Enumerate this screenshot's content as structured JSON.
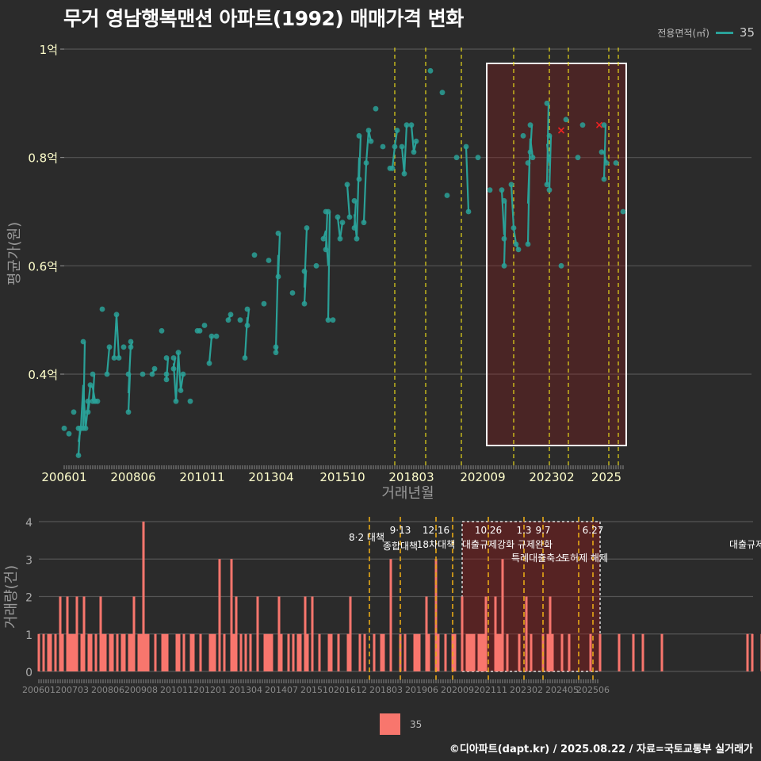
{
  "title": "무거 영남행복맨션 아파트(1992) 매매가격 변화",
  "legend": {
    "title": "전용면적(㎡)",
    "series_name": "35",
    "line_color": "#2aa198",
    "bar_color": "#f8766d"
  },
  "caption": "©디아파트(dapt.kr) / 2025.08.22 / 자료=국토교통부 실거래가",
  "chart_data": [
    {
      "type": "scatter",
      "xlabel": "거래년월",
      "ylabel": "평균가(원)",
      "x_tick_labels": [
        "200601",
        "200806",
        "201011",
        "201304",
        "201510",
        "201803",
        "202009",
        "202302",
        "2025"
      ],
      "y_tick_labels": [
        "0.4억",
        "0.6억",
        "0.8억",
        "1억"
      ],
      "ylim": [
        0.22,
        1.0
      ],
      "y_unit": "억",
      "grid": true,
      "legend_position": "top-right",
      "series": [
        {
          "name": "35",
          "color": "#2aa198",
          "points": [
            [
              "2006-01",
              0.3
            ],
            [
              "2006-03",
              0.29
            ],
            [
              "2006-05",
              0.33
            ],
            [
              "2006-07",
              0.3
            ],
            [
              "2006-07",
              0.25
            ],
            [
              "2006-08",
              0.3
            ],
            [
              "2006-09",
              0.3
            ],
            [
              "2006-09",
              0.46
            ],
            [
              "2006-10",
              0.3
            ],
            [
              "2006-11",
              0.33
            ],
            [
              "2006-11",
              0.35
            ],
            [
              "2006-12",
              0.38
            ],
            [
              "2007-01",
              0.35
            ],
            [
              "2007-01",
              0.4
            ],
            [
              "2007-02",
              0.35
            ],
            [
              "2007-03",
              0.35
            ],
            [
              "2007-05",
              0.52
            ],
            [
              "2007-07",
              0.4
            ],
            [
              "2007-08",
              0.45
            ],
            [
              "2007-10",
              0.43
            ],
            [
              "2007-11",
              0.51
            ],
            [
              "2007-12",
              0.43
            ],
            [
              "2008-02",
              0.45
            ],
            [
              "2008-04",
              0.33
            ],
            [
              "2008-04",
              0.4
            ],
            [
              "2008-05",
              0.45
            ],
            [
              "2008-05",
              0.46
            ],
            [
              "2008-10",
              0.4
            ],
            [
              "2009-02",
              0.4
            ],
            [
              "2009-03",
              0.41
            ],
            [
              "2009-06",
              0.48
            ],
            [
              "2009-08",
              0.43
            ],
            [
              "2009-08",
              0.4
            ],
            [
              "2009-08",
              0.39
            ],
            [
              "2009-11",
              0.41
            ],
            [
              "2009-11",
              0.43
            ],
            [
              "2009-12",
              0.35
            ],
            [
              "2010-01",
              0.44
            ],
            [
              "2010-02",
              0.37
            ],
            [
              "2010-03",
              0.4
            ],
            [
              "2010-06",
              0.35
            ],
            [
              "2010-09",
              0.48
            ],
            [
              "2010-10",
              0.48
            ],
            [
              "2010-12",
              0.49
            ],
            [
              "2011-02",
              0.42
            ],
            [
              "2011-03",
              0.47
            ],
            [
              "2011-05",
              0.47
            ],
            [
              "2011-10",
              0.5
            ],
            [
              "2011-11",
              0.51
            ],
            [
              "2012-03",
              0.5
            ],
            [
              "2012-05",
              0.43
            ],
            [
              "2012-06",
              0.49
            ],
            [
              "2012-06",
              0.52
            ],
            [
              "2012-09",
              0.62
            ],
            [
              "2013-01",
              0.53
            ],
            [
              "2013-03",
              0.61
            ],
            [
              "2013-06",
              0.44
            ],
            [
              "2013-06",
              0.45
            ],
            [
              "2013-07",
              0.58
            ],
            [
              "2013-07",
              0.66
            ],
            [
              "2014-01",
              0.55
            ],
            [
              "2014-06",
              0.53
            ],
            [
              "2014-06",
              0.59
            ],
            [
              "2014-07",
              0.67
            ],
            [
              "2014-11",
              0.6
            ],
            [
              "2015-02",
              0.65
            ],
            [
              "2015-03",
              0.63
            ],
            [
              "2015-03",
              0.7
            ],
            [
              "2015-04",
              0.5
            ],
            [
              "2015-04",
              0.7
            ],
            [
              "2015-06",
              0.5
            ],
            [
              "2015-08",
              0.69
            ],
            [
              "2015-09",
              0.65
            ],
            [
              "2015-10",
              0.68
            ],
            [
              "2015-12",
              0.75
            ],
            [
              "2016-01",
              0.69
            ],
            [
              "2016-03",
              0.67
            ],
            [
              "2016-03",
              0.72
            ],
            [
              "2016-04",
              0.65
            ],
            [
              "2016-05",
              0.76
            ],
            [
              "2016-05",
              0.84
            ],
            [
              "2016-07",
              0.68
            ],
            [
              "2016-08",
              0.79
            ],
            [
              "2016-09",
              0.85
            ],
            [
              "2016-10",
              0.83
            ],
            [
              "2016-12",
              0.89
            ],
            [
              "2017-03",
              0.82
            ],
            [
              "2017-06",
              0.78
            ],
            [
              "2017-07",
              0.78
            ],
            [
              "2017-08",
              0.82
            ],
            [
              "2017-09",
              0.85
            ],
            [
              "2017-11",
              0.82
            ],
            [
              "2017-12",
              0.77
            ],
            [
              "2018-01",
              0.86
            ],
            [
              "2018-03",
              0.86
            ],
            [
              "2018-04",
              0.81
            ],
            [
              "2018-05",
              0.83
            ],
            [
              "2018-11",
              0.96
            ],
            [
              "2019-04",
              0.92
            ],
            [
              "2019-06",
              0.73
            ],
            [
              "2019-10",
              0.8
            ],
            [
              "2020-02",
              0.82
            ],
            [
              "2020-03",
              0.7
            ],
            [
              "2020-07",
              0.8
            ],
            [
              "2020-12",
              0.74
            ],
            [
              "2021-05",
              0.74
            ],
            [
              "2021-06",
              0.72
            ],
            [
              "2021-06",
              0.65
            ],
            [
              "2021-06",
              0.6
            ],
            [
              "2021-09",
              0.75
            ],
            [
              "2021-10",
              0.67
            ],
            [
              "2021-11",
              0.64
            ],
            [
              "2021-12",
              0.63
            ],
            [
              "2022-02",
              0.84
            ],
            [
              "2022-04",
              0.64
            ],
            [
              "2022-04",
              0.79
            ],
            [
              "2022-05",
              0.81
            ],
            [
              "2022-05",
              0.86
            ],
            [
              "2022-06",
              0.8
            ],
            [
              "2022-12",
              0.9
            ],
            [
              "2022-12",
              0.75
            ],
            [
              "2023-01",
              0.74
            ],
            [
              "2023-01",
              0.84
            ],
            [
              "2023-06",
              0.6
            ],
            [
              "2023-08",
              0.87
            ],
            [
              "2024-01",
              0.8
            ],
            [
              "2024-03",
              0.86
            ],
            [
              "2024-11",
              0.81
            ],
            [
              "2024-12",
              0.86
            ],
            [
              "2024-12",
              0.76
            ],
            [
              "2025-01",
              0.79
            ],
            [
              "2025-05",
              0.79
            ],
            [
              "2025-08",
              0.7
            ]
          ]
        }
      ],
      "cancelled_marks": [
        [
          "2023-06",
          0.85
        ],
        [
          "2024-10",
          0.86
        ]
      ],
      "policy_dates": [
        "2017-08",
        "2018-09",
        "2019-12",
        "2021-10",
        "2023-01",
        "2023-09",
        "2025-02",
        "2025-06"
      ],
      "highlight_range": [
        "2020-12",
        "2025-08"
      ]
    },
    {
      "type": "bar",
      "ylabel": "거래량(건)",
      "x_tick_labels": [
        "200601",
        "200703",
        "200806",
        "200908",
        "201011",
        "201201",
        "201304",
        "201407",
        "201510",
        "201612",
        "201803",
        "201906",
        "202009",
        "202111",
        "202302",
        "202405",
        "202506"
      ],
      "y_tick_labels": [
        "0",
        "1",
        "2",
        "3",
        "4"
      ],
      "ylim": [
        0,
        4
      ],
      "series_name": "35",
      "monthly_counts": [
        1,
        0,
        1,
        0,
        1,
        1,
        0,
        1,
        0,
        2,
        1,
        0,
        2,
        1,
        1,
        1,
        2,
        0,
        1,
        2,
        0,
        1,
        1,
        0,
        1,
        0,
        2,
        1,
        1,
        0,
        1,
        1,
        0,
        1,
        0,
        1,
        1,
        0,
        1,
        1,
        2,
        0,
        1,
        1,
        4,
        1,
        1,
        0,
        0,
        1,
        0,
        0,
        1,
        1,
        1,
        0,
        0,
        0,
        1,
        1,
        0,
        1,
        0,
        0,
        1,
        1,
        0,
        0,
        1,
        0,
        0,
        0,
        1,
        1,
        1,
        0,
        3,
        0,
        1,
        0,
        0,
        3,
        1,
        2,
        0,
        1,
        0,
        1,
        0,
        1,
        0,
        0,
        2,
        0,
        0,
        1,
        1,
        1,
        1,
        0,
        0,
        2,
        1,
        0,
        0,
        1,
        0,
        1,
        0,
        1,
        1,
        0,
        2,
        1,
        0,
        2,
        0,
        0,
        1,
        0,
        0,
        0,
        1,
        1,
        0,
        0,
        1,
        0,
        0,
        0,
        1,
        2,
        0,
        0,
        0,
        1,
        0,
        1,
        0,
        0,
        0,
        1,
        0,
        0,
        1,
        1,
        0,
        0,
        3,
        0,
        0,
        0,
        1,
        0,
        1,
        0,
        0,
        0,
        1,
        1,
        1,
        0,
        0,
        2,
        1,
        0,
        0,
        3,
        1,
        0,
        0,
        1,
        0,
        0,
        1,
        1,
        0,
        0,
        2,
        0,
        1,
        1,
        1,
        1,
        0,
        1,
        1,
        1,
        2,
        0,
        0,
        0,
        2,
        1,
        1,
        3,
        0,
        1,
        0,
        0,
        0,
        0,
        1,
        0,
        0,
        2,
        0,
        1,
        0,
        0,
        0,
        0,
        1,
        0,
        1,
        2,
        1,
        0,
        0,
        0,
        1,
        0,
        0,
        1,
        0,
        0,
        0,
        0,
        0,
        0,
        0,
        0,
        1,
        0,
        0,
        0,
        1,
        0,
        0,
        0,
        0,
        0,
        0,
        0,
        1,
        0,
        0,
        0,
        0,
        0,
        1,
        0,
        0,
        0,
        1,
        0,
        0,
        0,
        0,
        0,
        0,
        0,
        1,
        0,
        0,
        0,
        0,
        0,
        0,
        0,
        0,
        0,
        0,
        0,
        0,
        0,
        0,
        0,
        0,
        0,
        0,
        0,
        0,
        0,
        0,
        0,
        0,
        0,
        0,
        0,
        0,
        0,
        0,
        0,
        0,
        0,
        0,
        0,
        1,
        0,
        1,
        0,
        0,
        0,
        1,
        0,
        0,
        0,
        0,
        0,
        0,
        0,
        1,
        2,
        1,
        0,
        1,
        0,
        0,
        0,
        0,
        0,
        0,
        0,
        1,
        1,
        0,
        0,
        1,
        0,
        0,
        0,
        0,
        0,
        0,
        0,
        0,
        0,
        0,
        0,
        0,
        0,
        0,
        0,
        0,
        0,
        0,
        0,
        0,
        0,
        0,
        0,
        0,
        0,
        0,
        1,
        0,
        0,
        0,
        0,
        0,
        0,
        1,
        0,
        0,
        0,
        0,
        0,
        1,
        2,
        0,
        0,
        0,
        0,
        0,
        0,
        0,
        0,
        0,
        0,
        0,
        0,
        0,
        0,
        0,
        0,
        0,
        1,
        0,
        0,
        0,
        0,
        3,
        0,
        0,
        0,
        0,
        0,
        0,
        0,
        0,
        0,
        0,
        0,
        0,
        0,
        0,
        0,
        0,
        0,
        0,
        0,
        1,
        0,
        0,
        1,
        1
      ],
      "policies": [
        {
          "date": "2017-08",
          "date_label": "",
          "label": "8·2 대책"
        },
        {
          "date": "2018-09",
          "date_label": "9·13",
          "label": "종합대책"
        },
        {
          "date": "2019-12",
          "date_label": "12·16",
          "label": "18차대책"
        },
        {
          "date": "2020-07",
          "date_label": "",
          "label": ""
        },
        {
          "date": "2021-10",
          "date_label": "10.26",
          "label": "대출규제강화"
        },
        {
          "date": "2023-01",
          "date_label": "1.3",
          "label": "규제완화"
        },
        {
          "date": "2023-09",
          "date_label": "9.7",
          "label": "특례대출축소"
        },
        {
          "date": "2024-12",
          "date_label": "",
          "label": "토허제 해제"
        },
        {
          "date": "2025-06",
          "date_label": "6.27",
          "label": "대출규제"
        }
      ],
      "highlight_range": [
        "2020-12",
        "2025-08"
      ]
    }
  ]
}
